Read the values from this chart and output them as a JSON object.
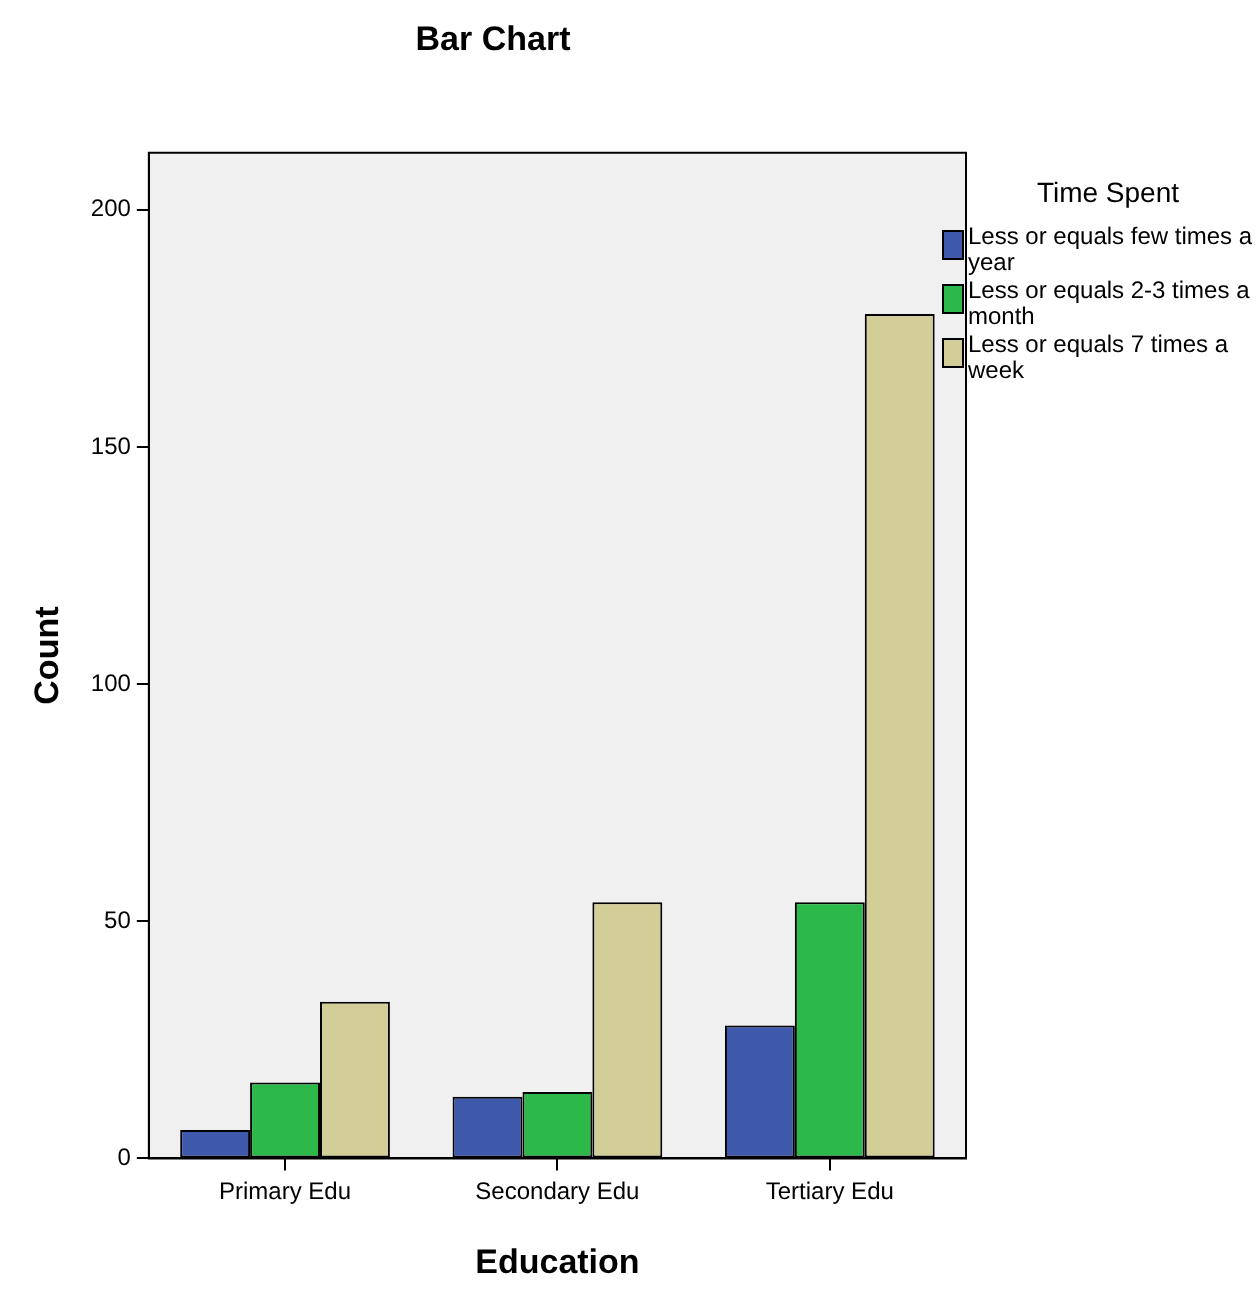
{
  "chart_data": {
    "type": "bar",
    "title": "Bar Chart",
    "xlabel": "Education",
    "ylabel": "Count",
    "legend_title": "Time Spent",
    "categories": [
      "Primary Edu",
      "Secondary Edu",
      "Tertiary Edu"
    ],
    "series": [
      {
        "name": "Less or equals few times a year",
        "color": "#3e58ac",
        "values": [
          6,
          13,
          28
        ]
      },
      {
        "name": "Less or equals 2-3 times a month",
        "color": "#2db84a",
        "values": [
          16,
          14,
          54
        ]
      },
      {
        "name": "Less or equals 7 times a week",
        "color": "#d3ce97",
        "values": [
          33,
          54,
          178
        ]
      }
    ],
    "ylim": [
      0,
      212
    ],
    "yticks": [
      0,
      50,
      100,
      150,
      200
    ],
    "legend": "top right"
  }
}
